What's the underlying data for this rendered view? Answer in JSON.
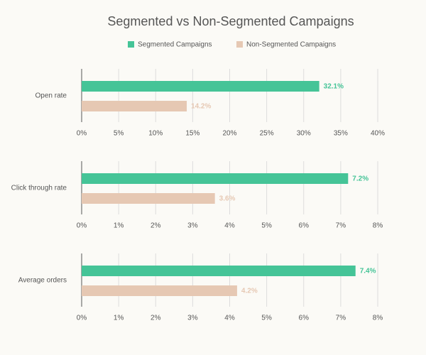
{
  "title": "Segmented vs Non-Segmented Campaigns",
  "chart_data": [
    {
      "type": "hbar",
      "categories": [
        "Open rate"
      ],
      "series": [
        {
          "name": "Segmented Campaigns",
          "color": "#45c497",
          "values": [
            32.1
          ],
          "value_labels": [
            "32.1%"
          ]
        },
        {
          "name": "Non-Segmented Campaigns",
          "color": "#e6c8b3",
          "values": [
            14.2
          ],
          "value_labels": [
            "14.2%"
          ]
        }
      ],
      "xlim": [
        0,
        40
      ],
      "xticks": [
        {
          "value": 0,
          "label": "0%"
        },
        {
          "value": 5,
          "label": "5%"
        },
        {
          "value": 10,
          "label": "10%"
        },
        {
          "value": 15,
          "label": "15%"
        },
        {
          "value": 20,
          "label": "20%"
        },
        {
          "value": 25,
          "label": "25%"
        },
        {
          "value": 30,
          "label": "30%"
        },
        {
          "value": 35,
          "label": "35%"
        },
        {
          "value": 40,
          "label": "40%"
        }
      ],
      "grid": true
    },
    {
      "type": "hbar",
      "categories": [
        "Click through rate"
      ],
      "series": [
        {
          "name": "Segmented Campaigns",
          "color": "#45c497",
          "values": [
            7.2
          ],
          "value_labels": [
            "7.2%"
          ]
        },
        {
          "name": "Non-Segmented Campaigns",
          "color": "#e6c8b3",
          "values": [
            3.6
          ],
          "value_labels": [
            "3.6%"
          ]
        }
      ],
      "xlim": [
        0,
        8
      ],
      "xticks": [
        {
          "value": 0,
          "label": "0%"
        },
        {
          "value": 1,
          "label": "1%"
        },
        {
          "value": 2,
          "label": "2%"
        },
        {
          "value": 3,
          "label": "3%"
        },
        {
          "value": 4,
          "label": "4%"
        },
        {
          "value": 5,
          "label": "5%"
        },
        {
          "value": 6,
          "label": "6%"
        },
        {
          "value": 7,
          "label": "7%"
        },
        {
          "value": 8,
          "label": "8%"
        }
      ],
      "grid": true
    },
    {
      "type": "hbar",
      "categories": [
        "Average orders"
      ],
      "series": [
        {
          "name": "Segmented Campaigns",
          "color": "#45c497",
          "values": [
            7.4
          ],
          "value_labels": [
            "7.4%"
          ]
        },
        {
          "name": "Non-Segmented Campaigns",
          "color": "#e6c8b3",
          "values": [
            4.2
          ],
          "value_labels": [
            "4.2%"
          ]
        }
      ],
      "xlim": [
        0,
        8
      ],
      "xticks": [
        {
          "value": 0,
          "label": "0%"
        },
        {
          "value": 1,
          "label": "1%"
        },
        {
          "value": 2,
          "label": "2%"
        },
        {
          "value": 3,
          "label": "3%"
        },
        {
          "value": 4,
          "label": "4%"
        },
        {
          "value": 5,
          "label": "5%"
        },
        {
          "value": 6,
          "label": "6%"
        },
        {
          "value": 7,
          "label": "7%"
        },
        {
          "value": 8,
          "label": "8%"
        }
      ],
      "grid": true
    }
  ]
}
